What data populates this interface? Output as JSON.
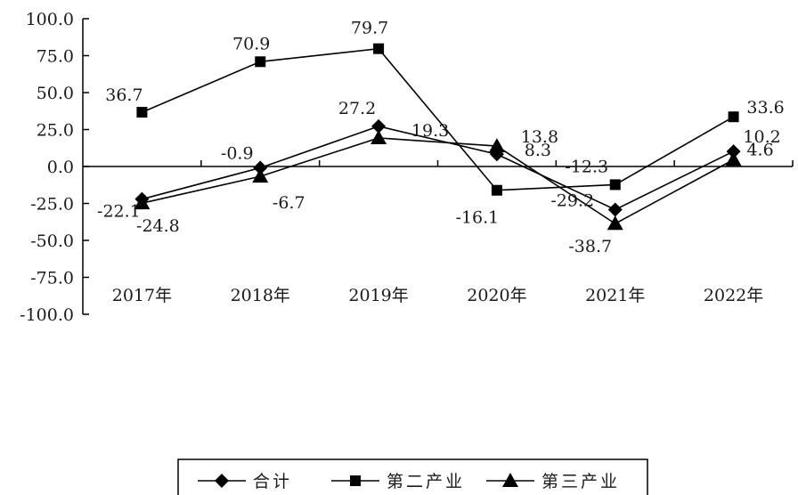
{
  "chart_data": {
    "type": "line",
    "categories": [
      "2017年",
      "2018年",
      "2019年",
      "2020年",
      "2021年",
      "2022年"
    ],
    "ylim": [
      -100,
      100
    ],
    "yticks": [
      "100.0",
      "75.0",
      "50.0",
      "25.0",
      "0.0",
      "-25.0",
      "-50.0",
      "-75.0",
      "-100.0"
    ],
    "grid": false,
    "legend_position": "bottom-center",
    "series": [
      {
        "name": "合计",
        "marker": "diamond",
        "color": "#000000",
        "values": [
          -22.1,
          -0.9,
          27.2,
          8.3,
          -29.2,
          10.2
        ],
        "labels": [
          "-22.1",
          "-0.9",
          "27.2",
          "8.3",
          "-29.2",
          "10.2"
        ]
      },
      {
        "name": "第二产业",
        "marker": "square",
        "color": "#000000",
        "values": [
          36.7,
          70.9,
          79.7,
          -16.1,
          -12.3,
          33.6
        ],
        "labels": [
          "36.7",
          "70.9",
          "79.7",
          "-16.1",
          "-12.3",
          "33.6"
        ]
      },
      {
        "name": "第三产业",
        "marker": "triangle",
        "color": "#000000",
        "values": [
          -24.8,
          -6.7,
          19.3,
          13.8,
          -38.7,
          4.6
        ],
        "labels": [
          "-24.8",
          "-6.7",
          "19.3",
          "13.8",
          "-38.7",
          "4.6"
        ]
      }
    ]
  }
}
